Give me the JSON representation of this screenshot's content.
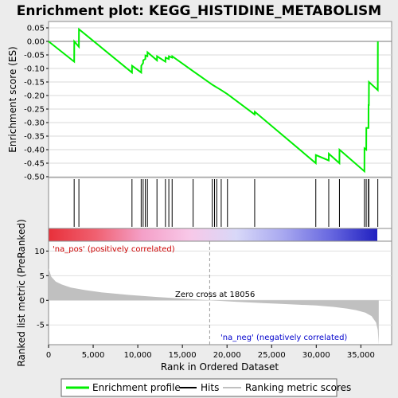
{
  "chart_data": {
    "title": "Enrichment plot: KEGG_HISTIDINE_METABOLISM",
    "x_axis": {
      "label": "Rank in Ordered Dataset",
      "range": [
        0,
        37200
      ],
      "ticks": [
        0,
        5000,
        10000,
        15000,
        20000,
        25000,
        30000,
        35000
      ],
      "tick_labels": [
        "0",
        "5,000",
        "10,000",
        "15,000",
        "20,000",
        "25,000",
        "30,000",
        "35,000"
      ]
    },
    "enrichment_panel": {
      "type": "line",
      "ylabel": "Enrichment score (ES)",
      "ylim": [
        -0.5,
        0.05
      ],
      "ticks": [
        0.05,
        0.0,
        -0.05,
        -0.1,
        -0.15,
        -0.2,
        -0.25,
        -0.3,
        -0.35,
        -0.4,
        -0.45,
        -0.5
      ],
      "tick_labels": [
        "0.05",
        "0.00",
        "-0.05",
        "-0.10",
        "-0.15",
        "-0.20",
        "-0.25",
        "-0.30",
        "-0.35",
        "-0.40",
        "-0.45",
        "-0.50"
      ],
      "series_color": "#00ee00",
      "points": [
        [
          0,
          0.0
        ],
        [
          2870,
          -0.075
        ],
        [
          2880,
          0.0
        ],
        [
          3400,
          -0.02
        ],
        [
          3410,
          0.045
        ],
        [
          9350,
          -0.115
        ],
        [
          9360,
          -0.09
        ],
        [
          10380,
          -0.115
        ],
        [
          10390,
          -0.09
        ],
        [
          10600,
          -0.08
        ],
        [
          10610,
          -0.07
        ],
        [
          10850,
          -0.065
        ],
        [
          10860,
          -0.052
        ],
        [
          11080,
          -0.055
        ],
        [
          11090,
          -0.04
        ],
        [
          12150,
          -0.07
        ],
        [
          12160,
          -0.055
        ],
        [
          13100,
          -0.075
        ],
        [
          13110,
          -0.06
        ],
        [
          13480,
          -0.065
        ],
        [
          13490,
          -0.055
        ],
        [
          13850,
          -0.06
        ],
        [
          13860,
          -0.055
        ],
        [
          16200,
          -0.11
        ],
        [
          18350,
          -0.16
        ],
        [
          18600,
          -0.165
        ],
        [
          18850,
          -0.17
        ],
        [
          19350,
          -0.18
        ],
        [
          20050,
          -0.195
        ],
        [
          23100,
          -0.27
        ],
        [
          23110,
          -0.26
        ],
        [
          29950,
          -0.45
        ],
        [
          29960,
          -0.42
        ],
        [
          31400,
          -0.44
        ],
        [
          31410,
          -0.415
        ],
        [
          32600,
          -0.45
        ],
        [
          32610,
          -0.4
        ],
        [
          35400,
          -0.48
        ],
        [
          35410,
          -0.395
        ],
        [
          35600,
          -0.4
        ],
        [
          35610,
          -0.32
        ],
        [
          35850,
          -0.32
        ],
        [
          35860,
          -0.235
        ],
        [
          35900,
          -0.235
        ],
        [
          35910,
          -0.15
        ],
        [
          36900,
          -0.18
        ],
        [
          36910,
          0.0
        ]
      ]
    },
    "hits_panel": {
      "label": "Hits",
      "positions": [
        2870,
        3400,
        9350,
        10380,
        10600,
        10850,
        11080,
        12150,
        13100,
        13480,
        13850,
        16200,
        18350,
        18600,
        18850,
        19350,
        20050,
        23100,
        29950,
        31400,
        32600,
        35400,
        35600,
        35850,
        35900,
        36900
      ]
    },
    "color_bar": {
      "stops": [
        "#e8303a",
        "#f06070",
        "#f4a0c8",
        "#f8c8e8",
        "#d8d8f8",
        "#a8a8f0",
        "#6868e0",
        "#2020c0"
      ]
    },
    "metric_panel": {
      "type": "area",
      "ylabel": "Ranked list metric (PreRanked)",
      "ylim": [
        -9,
        12
      ],
      "ticks": [
        10,
        5,
        0,
        -5
      ],
      "tick_labels": [
        "10",
        "5",
        "0",
        "-5"
      ],
      "fill_color": "#c0c0c0",
      "points": [
        [
          0,
          6.5
        ],
        [
          300,
          4.8
        ],
        [
          800,
          3.8
        ],
        [
          1500,
          3.2
        ],
        [
          2500,
          2.6
        ],
        [
          4000,
          2.1
        ],
        [
          6000,
          1.6
        ],
        [
          9000,
          1.1
        ],
        [
          12000,
          0.7
        ],
        [
          15000,
          0.35
        ],
        [
          18056,
          0.0
        ],
        [
          21000,
          -0.3
        ],
        [
          24000,
          -0.55
        ],
        [
          27000,
          -0.8
        ],
        [
          30000,
          -1.05
        ],
        [
          32000,
          -1.35
        ],
        [
          33500,
          -1.7
        ],
        [
          34500,
          -2.0
        ],
        [
          35500,
          -2.5
        ],
        [
          36200,
          -3.2
        ],
        [
          36700,
          -4.5
        ],
        [
          36900,
          -6.0
        ],
        [
          37000,
          -9.0
        ]
      ],
      "zero_cross_rank": 18056,
      "zero_cross_label": "Zero cross at 18056",
      "pos_label": "'na_pos' (positively correlated)",
      "neg_label": "'na_neg' (negatively correlated)"
    },
    "legend": [
      {
        "label": "Enrichment profile",
        "color": "#00ee00"
      },
      {
        "label": "Hits",
        "color": "#000000"
      },
      {
        "label": "Ranking metric scores",
        "color": "#c0c0c0"
      }
    ]
  }
}
